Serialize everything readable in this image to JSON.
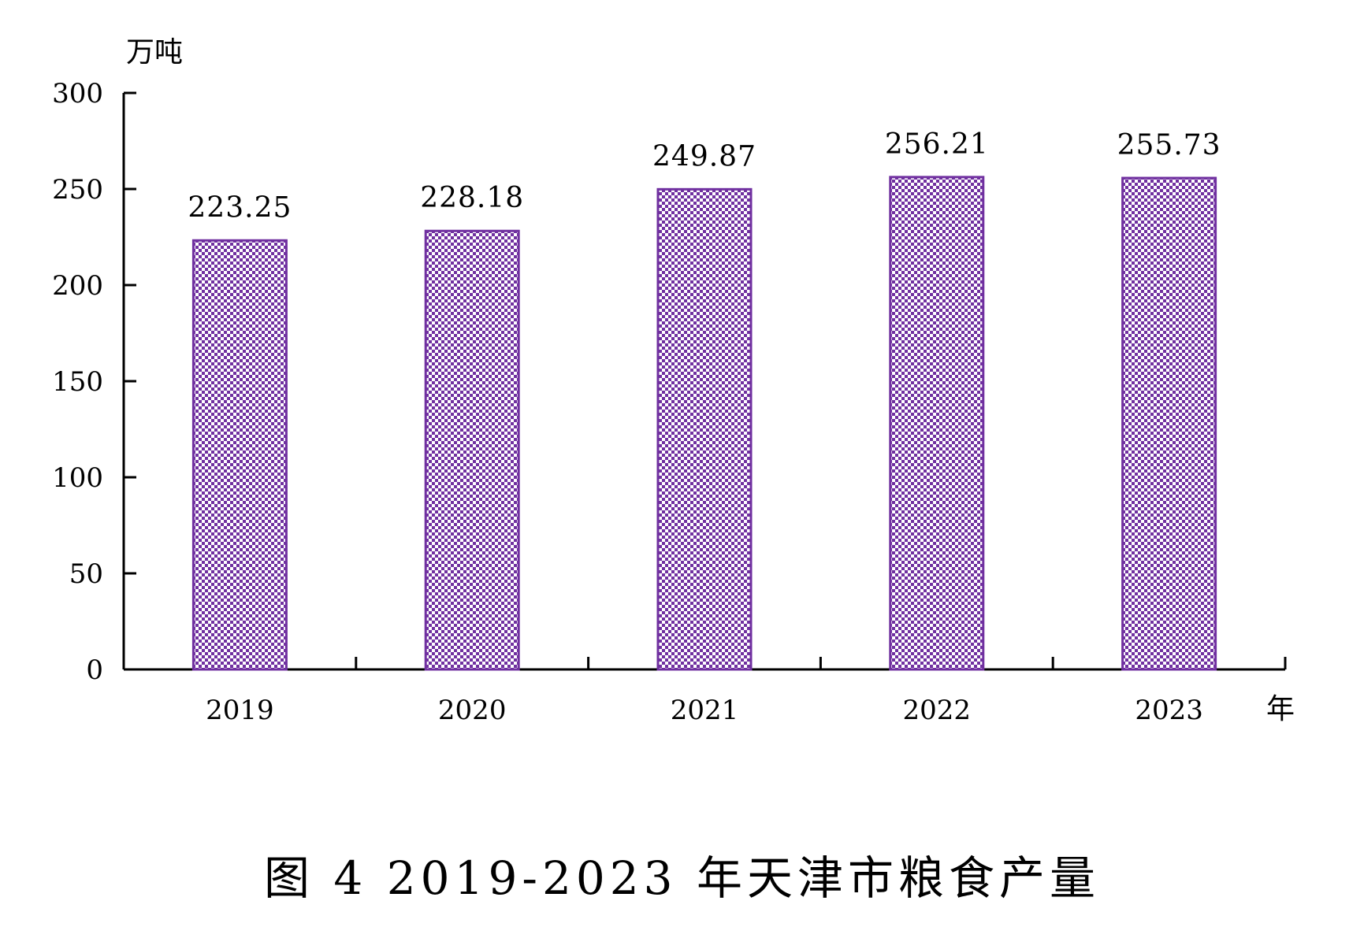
{
  "chart_data": {
    "type": "bar",
    "title": "图 4 2019-2023 年天津市粮食产量",
    "xlabel": "年",
    "ylabel": "万吨",
    "categories": [
      "2019",
      "2020",
      "2021",
      "2022",
      "2023"
    ],
    "values": [
      223.25,
      228.18,
      249.87,
      256.21,
      255.73
    ],
    "value_labels": [
      "223.25",
      "228.18",
      "249.87",
      "256.21",
      "255.73"
    ],
    "ylim": [
      0,
      300
    ],
    "yticks": [
      0,
      50,
      100,
      150,
      200,
      250,
      300
    ],
    "grid": false,
    "bar_color": "#7030A0",
    "bar_fill": "checkered pattern"
  }
}
